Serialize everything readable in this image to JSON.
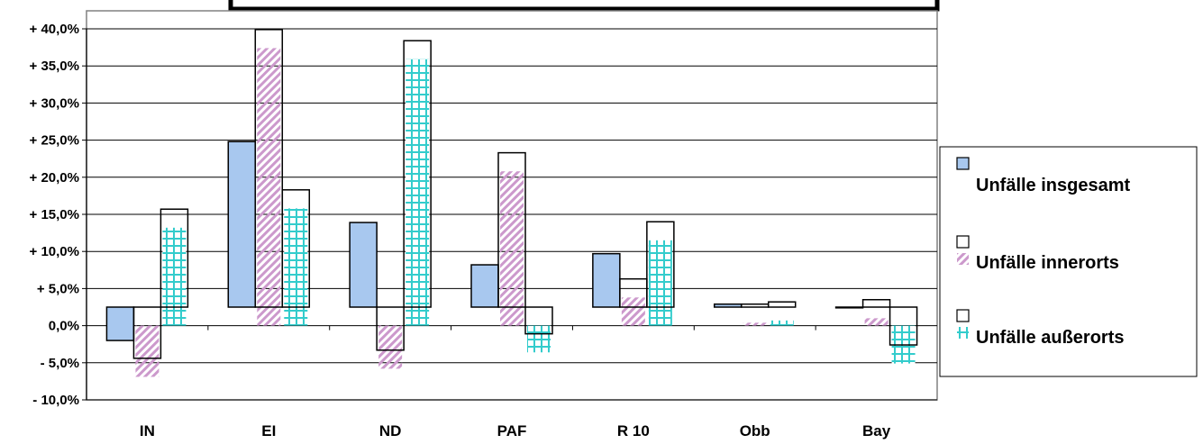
{
  "chart_data": {
    "type": "bar",
    "title": "",
    "xlabel": "",
    "ylabel": "",
    "categories": [
      "IN",
      "EI",
      "ND",
      "PAF",
      "R 10",
      "Obb",
      "Bay"
    ],
    "series": [
      {
        "name": "Unfälle insgesamt",
        "values": [
          -2.0,
          24.8,
          13.9,
          8.2,
          9.7,
          2.9,
          2.4
        ]
      },
      {
        "name": "Unfälle innerorts",
        "values": [
          -4.4,
          39.9,
          -3.3,
          23.3,
          6.3,
          2.9,
          3.5
        ]
      },
      {
        "name": "Unfälle außerorts",
        "values": [
          15.7,
          18.3,
          38.4,
          -1.1,
          14.0,
          3.2,
          -2.6
        ]
      }
    ],
    "ylim": [
      -10,
      40
    ],
    "y_ticks": [
      "+ 40,0%",
      "+ 35,0%",
      "+ 30,0%",
      "+ 25,0%",
      "+ 20,0%",
      "+ 15,0%",
      "+ 10,0%",
      "+ 5,0%",
      "0,0%",
      "- 5,0%",
      "- 10,0%"
    ],
    "grid": true,
    "legend_position": "right",
    "colors": {
      "insgesamt": "#a8c8ef",
      "innerorts": "#cc99cc",
      "ausserorts": "#33cccc"
    }
  }
}
